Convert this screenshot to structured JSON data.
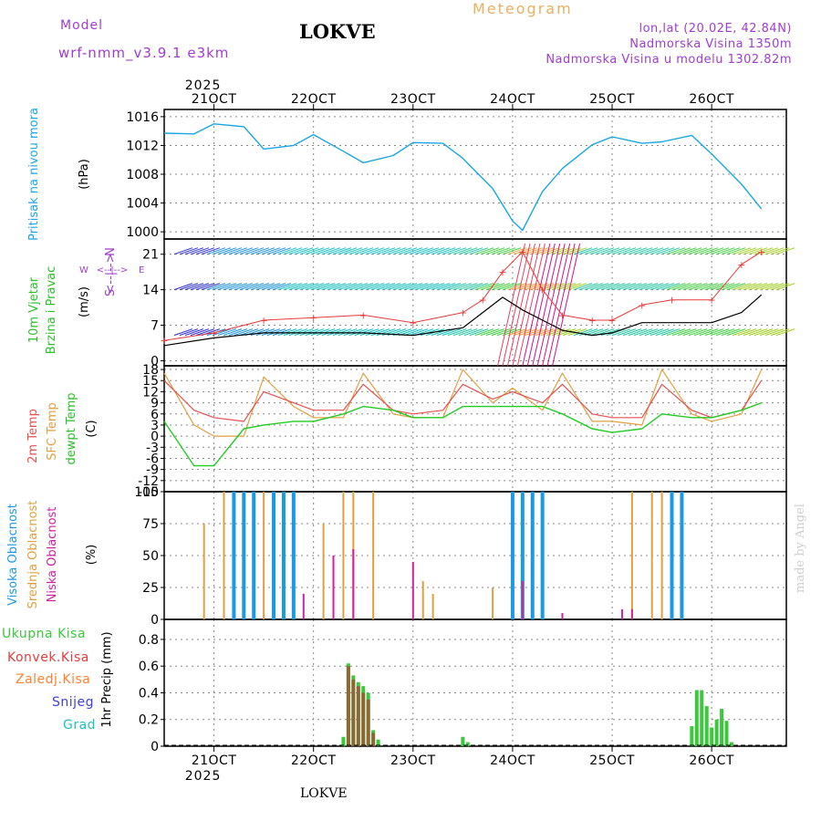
{
  "header": {
    "model_label": "Model",
    "model_name": "wrf-nmm_v3.9.1 e3km",
    "station": "LOKVE",
    "meteogram": "Meteogram",
    "lonlat": "lon,lat (20.02E, 42.84N)",
    "elevation": "Nadmorska Visina 1350m",
    "model_elevation": "Nadmorska Visina u modelu 1302.82m",
    "made_by": "made by Angel",
    "year": "2025",
    "bottom_title": "LOKVE"
  },
  "colors": {
    "pressure": "#1aa6e6",
    "gust": "#e63c3c",
    "wind": "#000000",
    "temp2m": "#e65050",
    "sfc": "#e0a040",
    "dew": "#22cc22",
    "high": "#1a9ae6",
    "mid": "#e0a040",
    "low": "#d020a0",
    "precip_total": "#3cc83c",
    "precip_conv": "#e63c3c",
    "precip_frz": "#ff8030",
    "precip_snow": "#4040e0",
    "precip_hail": "#20c0c0",
    "purple": "#a03cd0"
  },
  "chart_data": [
    {
      "type": "line",
      "panel": "pressure",
      "ylabel_left": "Pritisak na nivou mora",
      "unit": "(hPa)",
      "ylim": [
        999,
        1017
      ],
      "yticks": [
        1000,
        1004,
        1008,
        1012,
        1016
      ],
      "x_days": [
        20.5,
        20.8,
        21.0,
        21.3,
        21.5,
        21.8,
        22.0,
        22.3,
        22.5,
        22.8,
        23.0,
        23.3,
        23.5,
        23.8,
        24.0,
        24.1,
        24.3,
        24.5,
        24.8,
        25.0,
        25.3,
        25.5,
        25.8,
        26.0,
        26.3,
        26.5
      ],
      "values": [
        1013.7,
        1013.6,
        1015.0,
        1014.6,
        1011.5,
        1012.0,
        1013.5,
        1011.2,
        1009.6,
        1010.6,
        1012.4,
        1012.3,
        1010.2,
        1006.0,
        1001.5,
        1000.2,
        1005.6,
        1008.8,
        1012.1,
        1013.2,
        1012.3,
        1012.5,
        1013.4,
        1010.8,
        1006.6,
        1003.2
      ]
    },
    {
      "type": "line",
      "panel": "wind",
      "ylabel_left": "10m Vjetar",
      "ylabel_left2": "Brzina i Pravac",
      "unit": "(m/s)",
      "ylim": [
        -1,
        24
      ],
      "yticks": [
        0,
        7,
        14,
        21
      ],
      "compass": {
        "n": "N",
        "s": "S",
        "e": "E",
        "w": "W",
        "arrows": "<--|-->"
      },
      "series": [
        {
          "name": "gust",
          "x_days": [
            20.5,
            21.0,
            21.5,
            22.0,
            22.5,
            23.0,
            23.5,
            23.7,
            23.9,
            24.1,
            24.3,
            24.5,
            24.8,
            25.0,
            25.3,
            25.6,
            26.0,
            26.3,
            26.5
          ],
          "values": [
            4.0,
            5.5,
            8.0,
            8.5,
            9.0,
            7.5,
            9.5,
            12.0,
            17.5,
            21.5,
            14.0,
            9.0,
            8.0,
            8.0,
            11.0,
            12.0,
            12.0,
            19.0,
            21.5
          ]
        },
        {
          "name": "wind",
          "x_days": [
            20.5,
            21.0,
            21.5,
            22.0,
            22.5,
            23.0,
            23.5,
            23.7,
            23.9,
            24.1,
            24.3,
            24.5,
            24.8,
            25.0,
            25.3,
            25.6,
            26.0,
            26.3,
            26.5
          ],
          "values": [
            3.0,
            4.5,
            5.5,
            5.5,
            5.5,
            5.0,
            6.5,
            9.5,
            12.5,
            10.0,
            8.0,
            6.0,
            5.0,
            5.5,
            7.5,
            7.5,
            7.5,
            9.5,
            13.0
          ]
        }
      ]
    },
    {
      "type": "line",
      "panel": "temperature",
      "ylabel_left": "2m Temp",
      "ylabel_left2": "SFC Temp",
      "ylabel_left3": "dewpt Temp",
      "unit": "(C)",
      "ylim": [
        -15,
        19
      ],
      "yticks": [
        18,
        15,
        12,
        9,
        6,
        3,
        0,
        -3,
        -6,
        -9,
        -12,
        -15
      ],
      "series": [
        {
          "name": "2m",
          "x_days": [
            20.5,
            20.8,
            21.0,
            21.3,
            21.5,
            21.8,
            22.0,
            22.3,
            22.5,
            22.8,
            23.0,
            23.3,
            23.5,
            23.8,
            24.0,
            24.3,
            24.5,
            24.8,
            25.0,
            25.3,
            25.5,
            25.8,
            26.0,
            26.3,
            26.5
          ],
          "values": [
            15,
            7,
            5,
            4,
            12,
            9,
            7,
            7,
            14,
            7,
            6,
            7,
            14,
            10,
            12,
            9,
            14,
            6,
            5,
            5,
            14,
            7,
            5,
            7,
            15
          ]
        },
        {
          "name": "sfc",
          "x_days": [
            20.5,
            20.8,
            21.0,
            21.3,
            21.5,
            21.8,
            22.0,
            22.3,
            22.5,
            22.8,
            23.0,
            23.3,
            23.5,
            23.8,
            24.0,
            24.3,
            24.5,
            24.8,
            25.0,
            25.3,
            25.5,
            25.8,
            26.0,
            26.3,
            26.5
          ],
          "values": [
            17,
            3,
            0,
            0,
            16,
            8,
            5,
            5,
            17,
            6,
            5,
            5,
            18,
            9,
            13,
            7,
            17,
            4,
            4,
            3,
            18,
            6,
            4,
            6,
            18
          ]
        },
        {
          "name": "dew",
          "x_days": [
            20.5,
            20.8,
            21.0,
            21.3,
            21.5,
            21.8,
            22.0,
            22.3,
            22.5,
            22.8,
            23.0,
            23.3,
            23.5,
            23.8,
            24.0,
            24.3,
            24.5,
            24.8,
            25.0,
            25.3,
            25.5,
            25.8,
            26.0,
            26.3,
            26.5
          ],
          "values": [
            4,
            -8,
            -8,
            2,
            3,
            4,
            4,
            6,
            8,
            7,
            5,
            5,
            8,
            8,
            8,
            8,
            6,
            2,
            1,
            2,
            6,
            5,
            5,
            7,
            9
          ]
        }
      ]
    },
    {
      "type": "bar",
      "panel": "cloud",
      "ylabel_left": "Visoka Oblacnost",
      "ylabel_left2": "Srednja Oblacnost",
      "ylabel_left3": "Niska Oblacnost",
      "unit": "(%)",
      "ylim": [
        0,
        100
      ],
      "yticks": [
        0,
        25,
        50,
        75,
        100
      ],
      "series": [
        {
          "name": "high",
          "x_days": [
            21.2,
            21.3,
            21.4,
            21.6,
            21.7,
            21.8,
            24.0,
            24.1,
            24.2,
            24.3,
            25.6,
            25.7
          ],
          "values": [
            100,
            100,
            100,
            100,
            100,
            100,
            100,
            100,
            100,
            100,
            100,
            100
          ]
        },
        {
          "name": "mid",
          "x_days": [
            20.9,
            21.1,
            21.5,
            22.1,
            22.3,
            22.4,
            22.6,
            23.1,
            23.2,
            23.8,
            25.2,
            25.4,
            25.5
          ],
          "values": [
            75,
            100,
            100,
            75,
            100,
            100,
            100,
            30,
            20,
            25,
            100,
            100,
            100
          ]
        },
        {
          "name": "low",
          "x_days": [
            21.9,
            22.2,
            22.4,
            23.0,
            24.1,
            24.5,
            25.1,
            25.2
          ],
          "values": [
            20,
            50,
            55,
            45,
            30,
            5,
            8,
            8
          ]
        }
      ]
    },
    {
      "type": "bar",
      "panel": "precip",
      "ylabel_left": "1hr Precip (mm)",
      "legend": [
        "Ukupna Kisa",
        "Konvek.Kisa",
        "Zaledj.Kisa",
        "Snijeg",
        "Grad"
      ],
      "ylim": [
        0,
        0.95
      ],
      "yticks": [
        0,
        0.2,
        0.4,
        0.6,
        0.8
      ],
      "series": [
        {
          "name": "total",
          "x_days": [
            22.3,
            22.35,
            22.4,
            22.45,
            22.5,
            22.55,
            22.6,
            22.65,
            23.5,
            23.55,
            25.8,
            25.85,
            25.9,
            25.95,
            26.0,
            26.05,
            26.1,
            26.15,
            26.2,
            26.25
          ],
          "values": [
            0.07,
            0.62,
            0.53,
            0.48,
            0.45,
            0.4,
            0.12,
            0.05,
            0.07,
            0.03,
            0.15,
            0.42,
            0.42,
            0.3,
            0.14,
            0.2,
            0.28,
            0.19,
            0.03,
            0.0
          ]
        },
        {
          "name": "conv",
          "x_days": [
            22.35,
            22.4,
            22.45,
            22.5,
            22.55,
            22.6
          ],
          "values": [
            0.6,
            0.5,
            0.45,
            0.4,
            0.35,
            0.1
          ]
        }
      ]
    }
  ],
  "x_axis": {
    "ticks": [
      "21OCT",
      "22OCT",
      "23OCT",
      "24OCT",
      "25OCT",
      "26OCT"
    ],
    "tick_days": [
      21,
      22,
      23,
      24,
      25,
      26
    ],
    "start_day": 20.5,
    "end_day": 26.75
  }
}
